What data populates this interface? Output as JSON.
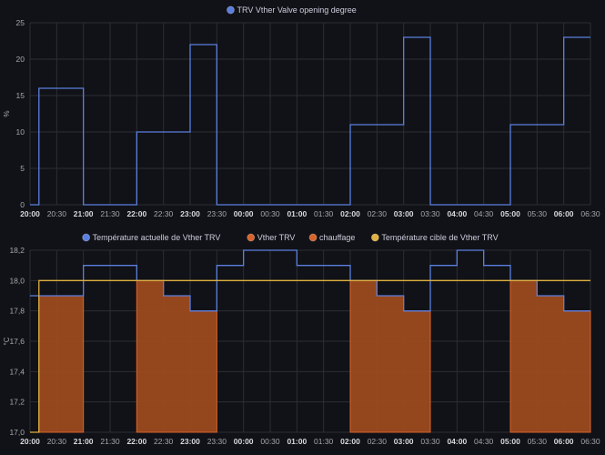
{
  "chart_data": [
    {
      "type": "line",
      "step": true,
      "legend": [
        {
          "name": "TRV Vther Valve opening degree",
          "color": "#5b7fe0"
        }
      ],
      "ylabel": "%",
      "ylim": [
        0,
        25
      ],
      "yticks": [
        "0",
        "5",
        "10",
        "15",
        "20",
        "25"
      ],
      "x_ticks": [
        "20:00",
        "20:30",
        "21:00",
        "21:30",
        "22:00",
        "22:30",
        "23:00",
        "23:30",
        "00:00",
        "00:30",
        "01:00",
        "01:30",
        "02:00",
        "02:30",
        "03:00",
        "03:30",
        "04:00",
        "04:30",
        "05:00",
        "05:30",
        "06:00",
        "06:30"
      ],
      "grid": true,
      "series": [
        {
          "name": "TRV Vther Valve opening degree",
          "color": "#5b7fe0",
          "points": [
            [
              "20:00",
              0
            ],
            [
              "20:10",
              16
            ],
            [
              "21:00",
              0
            ],
            [
              "22:00",
              10
            ],
            [
              "23:00",
              22
            ],
            [
              "23:30",
              0
            ],
            [
              "02:00",
              11
            ],
            [
              "03:00",
              23
            ],
            [
              "03:30",
              0
            ],
            [
              "05:00",
              11
            ],
            [
              "06:00",
              23
            ],
            [
              "06:30",
              23
            ]
          ]
        }
      ]
    },
    {
      "type": "line",
      "step": true,
      "legend": [
        {
          "name": "Température actuelle de Vther TRV",
          "color": "#5b7fe0"
        },
        {
          "name": "Vther TRV",
          "color": "#d9632a"
        },
        {
          "name": "chauffage",
          "color": "#d9632a"
        },
        {
          "name": "Température cible de Vther TRV",
          "color": "#e0b040"
        }
      ],
      "ylabel": "°C",
      "ylim": [
        17.0,
        18.2
      ],
      "yticks": [
        "17,0",
        "17,2",
        "17,4",
        "17,6",
        "17,8",
        "18,0",
        "18,2"
      ],
      "x_ticks": [
        "20:00",
        "20:30",
        "21:00",
        "21:30",
        "22:00",
        "22:30",
        "23:00",
        "23:30",
        "00:00",
        "00:30",
        "01:00",
        "01:30",
        "02:00",
        "02:30",
        "03:00",
        "03:30",
        "04:00",
        "04:30",
        "05:00",
        "05:30",
        "06:00",
        "06:30"
      ],
      "grid": true,
      "series": [
        {
          "name": "Température actuelle de Vther TRV",
          "color": "#5b7fe0",
          "points": [
            [
              "20:00",
              17.9
            ],
            [
              "21:00",
              18.1
            ],
            [
              "22:00",
              18.0
            ],
            [
              "22:30",
              17.9
            ],
            [
              "23:00",
              17.8
            ],
            [
              "23:30",
              18.1
            ],
            [
              "00:00",
              18.2
            ],
            [
              "01:00",
              18.1
            ],
            [
              "02:00",
              18.0
            ],
            [
              "02:30",
              17.9
            ],
            [
              "03:00",
              17.8
            ],
            [
              "03:30",
              18.1
            ],
            [
              "04:00",
              18.2
            ],
            [
              "04:30",
              18.1
            ],
            [
              "05:00",
              18.0
            ],
            [
              "05:30",
              17.9
            ],
            [
              "06:00",
              17.8
            ],
            [
              "06:30",
              17.8
            ]
          ]
        },
        {
          "name": "Température cible de Vther TRV",
          "color": "#e0b040",
          "points": [
            [
              "20:00",
              17.0
            ],
            [
              "20:10",
              18.0
            ],
            [
              "06:30",
              18.0
            ]
          ]
        }
      ],
      "heating_periods": [
        [
          "20:10",
          "21:00"
        ],
        [
          "22:00",
          "23:30"
        ],
        [
          "02:00",
          "03:30"
        ],
        [
          "05:00",
          "06:30"
        ]
      ]
    }
  ]
}
